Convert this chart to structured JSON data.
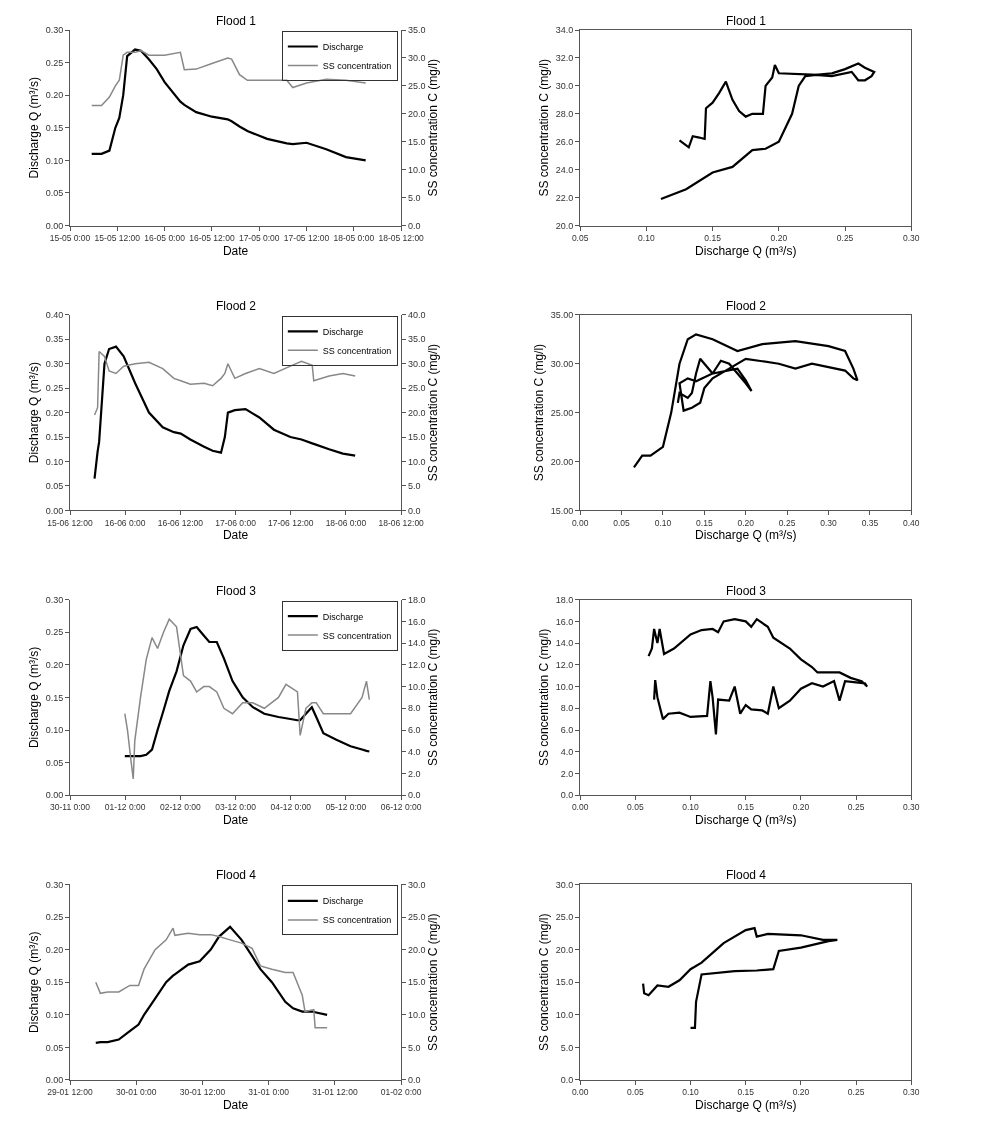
{
  "chart_data": [
    {
      "type": "line",
      "title": "Flood 1",
      "xlabel": "Date",
      "ylabel": "Discharge Q (m³/s)",
      "y2label": "SS concentration C (mg/l)",
      "legend": "top right",
      "x": [
        "--05-15T05:30",
        "--05-15T08:00",
        "--05-15T10:00",
        "--05-15T11:30",
        "--05-15T12:30",
        "--05-15T13:30",
        "--05-15T14:30",
        "--05-15T16:30",
        "--05-15T18:00",
        "--05-15T20:00",
        "--05-15T22:00",
        "--05-16T00:00",
        "--05-16T04:00",
        "--05-16T05:00",
        "--05-16T08:00",
        "--05-16T12:00",
        "--05-16T16:00",
        "--05-16T17:00",
        "--05-16T19:00",
        "--05-16T21:00",
        "--05-17T02:00",
        "--05-17T07:00",
        "--05-17T08:30",
        "--05-17T12:00",
        "--05-17T17:00",
        "--05-17T22:00",
        "--05-18T03:00"
      ],
      "xlim": [
        "--05-15T00:00",
        "--05-18T12:00"
      ],
      "xticks": [
        {
          "value": "--05-15T00:00",
          "label": "15-05 0:00"
        },
        {
          "value": "--05-15T12:00",
          "label": "15-05 12:00"
        },
        {
          "value": "--05-16T00:00",
          "label": "16-05 0:00"
        },
        {
          "value": "--05-16T12:00",
          "label": "16-05 12:00"
        },
        {
          "value": "--05-17T00:00",
          "label": "17-05 0:00"
        },
        {
          "value": "--05-17T12:00",
          "label": "17-05 12:00"
        },
        {
          "value": "--05-18T00:00",
          "label": "18-05 0:00"
        },
        {
          "value": "--05-18T12:00",
          "label": "18-05 12:00"
        }
      ],
      "ylim": [
        0,
        0.3
      ],
      "yticks": [
        {
          "value": 0,
          "label": "0.00"
        },
        {
          "value": 0.05,
          "label": "0.05"
        },
        {
          "value": 0.1,
          "label": "0.10"
        },
        {
          "value": 0.15,
          "label": "0.15"
        },
        {
          "value": 0.2,
          "label": "0.20"
        },
        {
          "value": 0.25,
          "label": "0.25"
        },
        {
          "value": 0.3,
          "label": "0.30"
        }
      ],
      "y2lim": [
        0,
        35
      ],
      "y2ticks": [
        {
          "value": 0,
          "label": "0.0"
        },
        {
          "value": 5,
          "label": "5.0"
        },
        {
          "value": 10,
          "label": "10.0"
        },
        {
          "value": 15,
          "label": "15.0"
        },
        {
          "value": 20,
          "label": "20.0"
        },
        {
          "value": 25,
          "label": "25.0"
        },
        {
          "value": 30,
          "label": "30.0"
        },
        {
          "value": 35,
          "label": "35.0"
        }
      ],
      "series": [
        {
          "name": "Discharge",
          "color": "#000000",
          "values": [
            0.11,
            0.11,
            0.115,
            0.15,
            0.165,
            0.2,
            0.26,
            0.27,
            0.268,
            0.255,
            0.24,
            0.22,
            0.19,
            0.185,
            0.174,
            0.167,
            0.163,
            0.16,
            0.152,
            0.145,
            0.133,
            0.126,
            0.125,
            0.127,
            0.117,
            0.105,
            0.1
          ]
        },
        {
          "name": "SS concentration",
          "color": "#888888",
          "axis": "y2",
          "values": [
            21.5,
            21.5,
            23,
            25,
            26,
            30.5,
            31,
            31,
            31.3,
            30.5,
            30.5,
            30.5,
            31,
            27.9,
            28,
            29,
            30,
            29.8,
            27,
            26,
            26,
            26,
            24.7,
            25.5,
            26.2,
            26,
            25.5
          ]
        }
      ]
    },
    {
      "type": "line",
      "title": "Flood 1",
      "xlabel": "Discharge Q (m³/s)",
      "ylabel": "SS concentration C (mg/l)",
      "x": [
        0.111,
        0.13,
        0.15,
        0.165,
        0.18,
        0.19,
        0.2,
        0.21,
        0.215,
        0.22,
        0.23,
        0.24,
        0.25,
        0.26,
        0.265,
        0.272,
        0.27,
        0.265,
        0.26,
        0.255,
        0.24,
        0.225,
        0.2,
        0.197,
        0.195,
        0.19,
        0.188,
        0.18,
        0.175,
        0.17,
        0.165,
        0.16,
        0.155,
        0.15,
        0.145,
        0.144,
        0.14,
        0.135,
        0.132,
        0.125
      ],
      "xlim": [
        0.05,
        0.3
      ],
      "xticks": [
        {
          "value": 0.05,
          "label": "0.05"
        },
        {
          "value": 0.1,
          "label": "0.10"
        },
        {
          "value": 0.15,
          "label": "0.15"
        },
        {
          "value": 0.2,
          "label": "0.20"
        },
        {
          "value": 0.25,
          "label": "0.25"
        },
        {
          "value": 0.3,
          "label": "0.30"
        }
      ],
      "ylim": [
        20,
        34
      ],
      "yticks": [
        {
          "value": 20,
          "label": "20.0"
        },
        {
          "value": 22,
          "label": "22.0"
        },
        {
          "value": 24,
          "label": "24.0"
        },
        {
          "value": 26,
          "label": "26.0"
        },
        {
          "value": 28,
          "label": "28.0"
        },
        {
          "value": 30,
          "label": "30.0"
        },
        {
          "value": 32,
          "label": "32.0"
        },
        {
          "value": 34,
          "label": "34.0"
        }
      ],
      "series": [
        {
          "color": "#000000",
          "values": [
            21.9,
            22.6,
            23.8,
            24.2,
            25.4,
            25.5,
            26,
            28,
            30,
            30.7,
            30.8,
            30.9,
            31.2,
            31.6,
            31.3,
            31,
            30.7,
            30.4,
            30.4,
            31,
            30.7,
            30.8,
            30.9,
            31.5,
            30.6,
            30,
            28,
            28,
            27.8,
            28.2,
            29,
            30.3,
            29.5,
            28.8,
            28.4,
            26.2,
            26.3,
            26.4,
            25.6,
            26.1
          ]
        }
      ]
    },
    {
      "type": "line",
      "title": "Flood 2",
      "xlabel": "Date",
      "ylabel": "Discharge Q (m³/s)",
      "y2label": "SS concentration C (mg/l)",
      "legend": "top right",
      "x": [
        "--06-15T17:20",
        "--06-15T18:00",
        "--06-15T18:20",
        "--06-15T19:30",
        "--06-15T20:30",
        "--06-15T22:00",
        "--06-15T23:40",
        "--06-16T02:10",
        "--06-16T05:10",
        "--06-16T08:10",
        "--06-16T10:35",
        "--06-16T12:05",
        "--06-16T14:10",
        "--06-16T17:10",
        "--06-16T19:00",
        "--06-16T20:50",
        "--06-16T21:40",
        "--06-16T22:20",
        "--06-16T23:50",
        "--06-17T02:10",
        "--06-17T05:10",
        "--06-17T08:20",
        "--06-17T11:55",
        "--06-17T14:20",
        "--06-17T16:40",
        "--06-17T17:00",
        "--06-17T20:20",
        "--06-17T23:20",
        "--06-18T02:00"
      ],
      "xlim": [
        "--06-15T12:00",
        "--06-18T12:00"
      ],
      "xticks": [
        {
          "value": "--06-15T12:00",
          "label": "15-06 12:00"
        },
        {
          "value": "--06-16T00:00",
          "label": "16-06 0:00"
        },
        {
          "value": "--06-16T12:00",
          "label": "16-06 12:00"
        },
        {
          "value": "--06-17T00:00",
          "label": "17-06 0:00"
        },
        {
          "value": "--06-17T12:00",
          "label": "17-06 12:00"
        },
        {
          "value": "--06-18T00:00",
          "label": "18-06 0:00"
        },
        {
          "value": "--06-18T12:00",
          "label": "18-06 12:00"
        }
      ],
      "ylim": [
        0,
        0.4
      ],
      "yticks": [
        {
          "value": 0,
          "label": "0.00"
        },
        {
          "value": 0.05,
          "label": "0.05"
        },
        {
          "value": 0.1,
          "label": "0.10"
        },
        {
          "value": 0.15,
          "label": "0.15"
        },
        {
          "value": 0.2,
          "label": "0.20"
        },
        {
          "value": 0.25,
          "label": "0.25"
        },
        {
          "value": 0.3,
          "label": "0.30"
        },
        {
          "value": 0.35,
          "label": "0.35"
        },
        {
          "value": 0.4,
          "label": "0.40"
        }
      ],
      "y2lim": [
        0,
        40
      ],
      "y2ticks": [
        {
          "value": 0,
          "label": "0.0"
        },
        {
          "value": 5,
          "label": "5.0"
        },
        {
          "value": 10,
          "label": "10.0"
        },
        {
          "value": 15,
          "label": "15.0"
        },
        {
          "value": 20,
          "label": "20.0"
        },
        {
          "value": 25,
          "label": "25.0"
        },
        {
          "value": 30,
          "label": "30.0"
        },
        {
          "value": 35,
          "label": "35.0"
        },
        {
          "value": 40,
          "label": "40.0"
        }
      ],
      "series": [
        {
          "name": "Discharge",
          "color": "#000000",
          "values": [
            0.065,
            0.12,
            0.14,
            0.3,
            0.33,
            0.335,
            0.315,
            0.26,
            0.2,
            0.17,
            0.16,
            0.157,
            0.145,
            0.13,
            0.122,
            0.118,
            0.15,
            0.2,
            0.205,
            0.207,
            0.19,
            0.165,
            0.15,
            0.145,
            0.137,
            0.136,
            0.125,
            0.116,
            0.112
          ]
        },
        {
          "name": "SS concentration",
          "color": "#888888",
          "axis": "y2",
          "values": [
            19.5,
            21,
            32.5,
            31.5,
            28.5,
            28,
            29.5,
            30,
            30.3,
            29,
            27,
            26.5,
            25.8,
            26,
            25.5,
            27,
            28,
            30,
            27,
            28,
            29,
            28,
            29.5,
            30.5,
            29.7,
            26.5,
            27.5,
            28,
            27.5
          ]
        }
      ]
    },
    {
      "type": "line",
      "title": "Flood 2",
      "xlabel": "Discharge Q (m³/s)",
      "ylabel": "SS concentration C (mg/l)",
      "x": [
        0.065,
        0.075,
        0.085,
        0.1,
        0.11,
        0.12,
        0.13,
        0.14,
        0.16,
        0.19,
        0.22,
        0.26,
        0.3,
        0.32,
        0.33,
        0.335,
        0.33,
        0.32,
        0.28,
        0.26,
        0.24,
        0.2,
        0.18,
        0.16,
        0.15,
        0.145,
        0.135,
        0.125,
        0.12,
        0.13,
        0.14,
        0.16,
        0.17,
        0.18,
        0.2,
        0.207,
        0.2,
        0.19,
        0.16,
        0.145,
        0.14,
        0.135,
        0.13,
        0.12,
        0.118
      ],
      "xlim": [
        0,
        0.4
      ],
      "xticks": [
        {
          "value": 0,
          "label": "0.00"
        },
        {
          "value": 0.05,
          "label": "0.05"
        },
        {
          "value": 0.1,
          "label": "0.10"
        },
        {
          "value": 0.15,
          "label": "0.15"
        },
        {
          "value": 0.2,
          "label": "0.20"
        },
        {
          "value": 0.25,
          "label": "0.25"
        },
        {
          "value": 0.3,
          "label": "0.30"
        },
        {
          "value": 0.35,
          "label": "0.35"
        },
        {
          "value": 0.4,
          "label": "0.40"
        }
      ],
      "ylim": [
        15,
        35
      ],
      "yticks": [
        {
          "value": 15,
          "label": "15.00"
        },
        {
          "value": 20,
          "label": "20.00"
        },
        {
          "value": 25,
          "label": "25.00"
        },
        {
          "value": 30,
          "label": "30.00"
        },
        {
          "value": 35,
          "label": "35.00"
        }
      ],
      "series": [
        {
          "color": "#000000",
          "values": [
            19.4,
            20.6,
            20.6,
            21.5,
            25,
            30,
            32.5,
            33,
            32.5,
            31.3,
            32,
            32.3,
            31.8,
            31.3,
            29.5,
            28.3,
            28.5,
            29.3,
            30,
            29.5,
            30,
            30.5,
            29.5,
            28.5,
            27.5,
            26,
            25.5,
            25.2,
            28,
            28.5,
            28.2,
            29,
            30.3,
            30,
            28,
            27.2,
            28.3,
            29.5,
            29,
            30.5,
            29,
            27,
            26.5,
            27,
            26
          ]
        }
      ]
    },
    {
      "type": "line",
      "title": "Flood 3",
      "xlabel": "Date",
      "ylabel": "Discharge Q (m³/s)",
      "y2label": "SS concentration C (mg/l)",
      "legend": "top right",
      "x": [
        "--11-30T23:50",
        "--12-01T01:00",
        "--12-01T02:20",
        "--12-01T03:30",
        "--12-01T04:10",
        "--12-01T06:40",
        "--12-01T09:10",
        "--12-01T11:40",
        "--12-01T14:05",
        "--12-01T16:40",
        "--12-01T19:10",
        "--12-01T22:20",
        "--12-02T01:20",
        "--12-02T04:25",
        "--12-02T07:05",
        "--12-02T10:10",
        "--12-02T12:35",
        "--12-02T15:50",
        "--12-02T18:55",
        "--12-02T22:40",
        "--12-03T03:05",
        "--12-03T07:30",
        "--12-03T12:30",
        "--12-03T18:40",
        "--12-03T21:55",
        "--12-04T02:55",
        "--12-04T04:05",
        "--12-04T06:35",
        "--12-04T09:10",
        "--12-04T11:05",
        "--12-04T14:10",
        "--12-04T19:50",
        "--12-05T02:00",
        "--12-05T07:00",
        "--12-05T08:55",
        "--12-05T10:10"
      ],
      "xlim": [
        "--11-30T00:00",
        "--12-06T00:00"
      ],
      "xticks": [
        {
          "value": "--11-30T00:00",
          "label": "30-11 0:00"
        },
        {
          "value": "--12-01T00:00",
          "label": "01-12 0:00"
        },
        {
          "value": "--12-02T00:00",
          "label": "02-12 0:00"
        },
        {
          "value": "--12-03T00:00",
          "label": "03-12 0:00"
        },
        {
          "value": "--12-04T00:00",
          "label": "04-12 0:00"
        },
        {
          "value": "--12-05T00:00",
          "label": "05-12 0:00"
        },
        {
          "value": "--12-06T00:00",
          "label": "06-12 0:00"
        }
      ],
      "ylim": [
        0,
        0.3
      ],
      "yticks": [
        {
          "value": 0,
          "label": "0.00"
        },
        {
          "value": 0.05,
          "label": "0.05"
        },
        {
          "value": 0.1,
          "label": "0.10"
        },
        {
          "value": 0.15,
          "label": "0.15"
        },
        {
          "value": 0.2,
          "label": "0.20"
        },
        {
          "value": 0.25,
          "label": "0.25"
        },
        {
          "value": 0.3,
          "label": "0.30"
        }
      ],
      "y2lim": [
        0,
        18
      ],
      "y2ticks": [
        {
          "value": 0,
          "label": "0.0"
        },
        {
          "value": 2,
          "label": "2.0"
        },
        {
          "value": 4,
          "label": "4.0"
        },
        {
          "value": 6,
          "label": "6.0"
        },
        {
          "value": 8,
          "label": "8.0"
        },
        {
          "value": 10,
          "label": "10.0"
        },
        {
          "value": 12,
          "label": "12.0"
        },
        {
          "value": 14,
          "label": "14.0"
        },
        {
          "value": 16,
          "label": "16.0"
        },
        {
          "value": 18,
          "label": "18.0"
        }
      ],
      "series": [
        {
          "name": "Discharge",
          "color": "#000000",
          "values": [
            0.06,
            0.06,
            0.06,
            0.06,
            0.06,
            0.06,
            0.062,
            0.07,
            0.1,
            0.13,
            0.16,
            0.19,
            0.23,
            0.255,
            0.258,
            0.245,
            0.235,
            0.235,
            0.21,
            0.175,
            0.15,
            0.135,
            0.125,
            0.12,
            0.118,
            0.115,
            0.115,
            0.125,
            0.135,
            0.12,
            0.095,
            0.085,
            0.075,
            0.07,
            0.068,
            0.067
          ]
        },
        {
          "name": "SS concentration",
          "color": "#888888",
          "axis": "y2",
          "values": [
            7.5,
            6,
            3.5,
            1.5,
            5,
            9,
            12.5,
            14.5,
            13.5,
            15,
            16.2,
            15.5,
            11,
            10.5,
            9.5,
            10,
            10,
            9.5,
            8,
            7.5,
            8.5,
            8.5,
            8,
            9,
            10.2,
            9.5,
            5.5,
            8,
            8.5,
            8.5,
            7.5,
            7.5,
            7.5,
            9,
            10.5,
            8.8
          ]
        }
      ]
    },
    {
      "type": "line",
      "title": "Flood 3",
      "xlabel": "Discharge Q (m³/s)",
      "ylabel": "SS concentration C (mg/l)",
      "x": [
        0.062,
        0.065,
        0.067,
        0.07,
        0.072,
        0.076,
        0.085,
        0.1,
        0.11,
        0.12,
        0.125,
        0.13,
        0.14,
        0.15,
        0.155,
        0.16,
        0.17,
        0.175,
        0.19,
        0.2,
        0.21,
        0.215,
        0.235,
        0.245,
        0.255,
        0.26,
        0.258,
        0.24,
        0.235,
        0.23,
        0.22,
        0.21,
        0.2,
        0.19,
        0.18,
        0.175,
        0.17,
        0.165,
        0.155,
        0.15,
        0.145,
        0.14,
        0.135,
        0.125,
        0.123,
        0.12,
        0.118,
        0.115,
        0.1,
        0.09,
        0.08,
        0.075,
        0.07,
        0.068,
        0.067
      ],
      "xlim": [
        0,
        0.3
      ],
      "xticks": [
        {
          "value": 0,
          "label": "0.00"
        },
        {
          "value": 0.05,
          "label": "0.05"
        },
        {
          "value": 0.1,
          "label": "0.10"
        },
        {
          "value": 0.15,
          "label": "0.15"
        },
        {
          "value": 0.2,
          "label": "0.20"
        },
        {
          "value": 0.25,
          "label": "0.25"
        },
        {
          "value": 0.3,
          "label": "0.30"
        }
      ],
      "ylim": [
        0,
        18
      ],
      "yticks": [
        {
          "value": 0,
          "label": "0.0"
        },
        {
          "value": 2,
          "label": "2.0"
        },
        {
          "value": 4,
          "label": "4.0"
        },
        {
          "value": 6,
          "label": "6.0"
        },
        {
          "value": 8,
          "label": "8.0"
        },
        {
          "value": 10,
          "label": "10.0"
        },
        {
          "value": 12,
          "label": "12.0"
        },
        {
          "value": 14,
          "label": "14.0"
        },
        {
          "value": 16,
          "label": "16.0"
        },
        {
          "value": 18,
          "label": "18.0"
        }
      ],
      "series": [
        {
          "color": "#000000",
          "values": [
            12.8,
            13.5,
            15.3,
            14,
            15.3,
            13,
            13.5,
            14.8,
            15.2,
            15.3,
            15,
            16,
            16.2,
            16,
            15.5,
            16.2,
            15.5,
            14.5,
            13.5,
            12.5,
            11.8,
            11.3,
            11.3,
            10.8,
            10.5,
            10,
            10.3,
            10.5,
            8.7,
            10.5,
            10,
            10.3,
            9.8,
            8.7,
            8,
            10,
            7.5,
            7.8,
            7.9,
            8.3,
            7.5,
            10,
            8.7,
            8.8,
            5.6,
            9,
            10.5,
            7.3,
            7.2,
            7.6,
            7.5,
            7,
            9,
            10.6,
            8.8
          ]
        }
      ]
    },
    {
      "type": "line",
      "title": "Flood 4",
      "xlabel": "Date",
      "ylabel": "Discharge Q (m³/s)",
      "y2label": "SS concentration C (mg/l)",
      "legend": "top right",
      "x": [
        "--01-29T16:40",
        "--01-29T17:30",
        "--01-29T18:50",
        "--01-29T20:50",
        "--01-29T22:50",
        "--01-30T00:25",
        "--01-30T01:25",
        "--01-30T03:25",
        "--01-30T05:25",
        "--01-30T06:40",
        "--01-30T07:00",
        "--01-30T09:25",
        "--01-30T11:30",
        "--01-30T13:30",
        "--01-30T15:00",
        "--01-30T17:00",
        "--01-30T19:05",
        "--01-30T21:00",
        "--01-30T22:30",
        "--01-31T00:35",
        "--01-31T03:00",
        "--01-31T04:25",
        "--01-31T06:05",
        "--01-31T06:35",
        "--01-31T08:10",
        "--01-31T08:25",
        "--01-31T10:35"
      ],
      "xlim": [
        "--01-29T12:00",
        "--02-01T00:00"
      ],
      "xticks": [
        {
          "value": "--01-29T12:00",
          "label": "29-01 12:00"
        },
        {
          "value": "--01-30T00:00",
          "label": "30-01 0:00"
        },
        {
          "value": "--01-30T12:00",
          "label": "30-01 12:00"
        },
        {
          "value": "--01-31T00:00",
          "label": "31-01 0:00"
        },
        {
          "value": "--01-31T12:00",
          "label": "31-01 12:00"
        },
        {
          "value": "--02-01T00:00",
          "label": "01-02 0:00"
        }
      ],
      "ylim": [
        0,
        0.3
      ],
      "yticks": [
        {
          "value": 0,
          "label": "0.00"
        },
        {
          "value": 0.05,
          "label": "0.05"
        },
        {
          "value": 0.1,
          "label": "0.10"
        },
        {
          "value": 0.15,
          "label": "0.15"
        },
        {
          "value": 0.2,
          "label": "0.20"
        },
        {
          "value": 0.25,
          "label": "0.25"
        },
        {
          "value": 0.3,
          "label": "0.30"
        }
      ],
      "y2lim": [
        0,
        30
      ],
      "y2ticks": [
        {
          "value": 0,
          "label": "0.0"
        },
        {
          "value": 5,
          "label": "5.0"
        },
        {
          "value": 10,
          "label": "10.0"
        },
        {
          "value": 15,
          "label": "15.0"
        },
        {
          "value": 20,
          "label": "20.0"
        },
        {
          "value": 25,
          "label": "25.0"
        },
        {
          "value": 30,
          "label": "30.0"
        }
      ],
      "series": [
        {
          "name": "Discharge",
          "color": "#000000",
          "values": [
            0.057,
            0.058,
            0.058,
            0.062,
            0.075,
            0.085,
            0.1,
            0.125,
            0.15,
            0.16,
            0.162,
            0.177,
            0.182,
            0.2,
            0.22,
            0.235,
            0.215,
            0.19,
            0.17,
            0.15,
            0.12,
            0.11,
            0.105,
            0.105,
            0.105,
            0.104,
            0.1
          ]
        },
        {
          "name": "SS concentration",
          "color": "#888888",
          "axis": "y2",
          "values": [
            15,
            13.3,
            13.5,
            13.5,
            14.5,
            14.5,
            17,
            20,
            21.5,
            23.3,
            22.2,
            22.5,
            22.3,
            22.3,
            22,
            21.5,
            21,
            20.2,
            17.5,
            17,
            16.5,
            16.5,
            13,
            10.5,
            10.8,
            8,
            8
          ]
        }
      ]
    },
    {
      "type": "line",
      "title": "Flood 4",
      "xlabel": "Discharge Q (m³/s)",
      "ylabel": "SS concentration C (mg/l)",
      "x": [
        0.057,
        0.058,
        0.062,
        0.07,
        0.08,
        0.09,
        0.1,
        0.11,
        0.12,
        0.13,
        0.15,
        0.158,
        0.16,
        0.17,
        0.2,
        0.22,
        0.233,
        0.225,
        0.2,
        0.18,
        0.175,
        0.16,
        0.14,
        0.11,
        0.105,
        0.104,
        0.1
      ],
      "xlim": [
        0,
        0.3
      ],
      "xticks": [
        {
          "value": 0,
          "label": "0.00"
        },
        {
          "value": 0.05,
          "label": "0.05"
        },
        {
          "value": 0.1,
          "label": "0.10"
        },
        {
          "value": 0.15,
          "label": "0.15"
        },
        {
          "value": 0.2,
          "label": "0.20"
        },
        {
          "value": 0.25,
          "label": "0.25"
        },
        {
          "value": 0.3,
          "label": "0.30"
        }
      ],
      "ylim": [
        0,
        30
      ],
      "yticks": [
        {
          "value": 0,
          "label": "0.0"
        },
        {
          "value": 5,
          "label": "5.0"
        },
        {
          "value": 10,
          "label": "10.0"
        },
        {
          "value": 15,
          "label": "15.0"
        },
        {
          "value": 20,
          "label": "20.0"
        },
        {
          "value": 25,
          "label": "25.0"
        },
        {
          "value": 30,
          "label": "30.0"
        }
      ],
      "series": [
        {
          "color": "#000000",
          "values": [
            14.8,
            13.3,
            13,
            14.5,
            14.3,
            15.3,
            17,
            18,
            19.5,
            21,
            23,
            23.3,
            22,
            22.4,
            22.2,
            21.5,
            21.5,
            21.3,
            20.3,
            19.8,
            17,
            16.8,
            16.7,
            16.2,
            12,
            8,
            8
          ]
        }
      ]
    }
  ]
}
